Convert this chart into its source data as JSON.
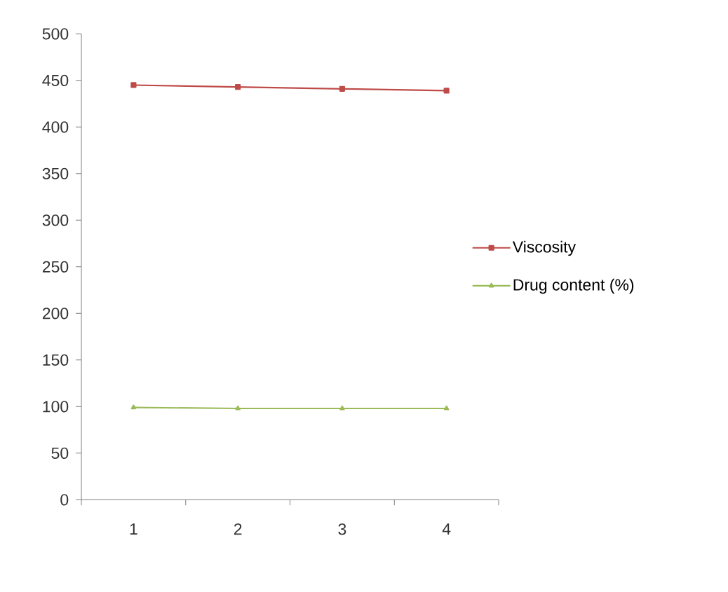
{
  "chart_data": {
    "type": "line",
    "categories": [
      "1",
      "2",
      "3",
      "4"
    ],
    "series": [
      {
        "name": "Viscosity",
        "color": "#be4b48",
        "marker": "square",
        "values": [
          445,
          443,
          441,
          439
        ]
      },
      {
        "name": "Drug content (%)",
        "color": "#9bbb59",
        "marker": "triangle",
        "values": [
          99,
          98,
          98,
          98
        ]
      }
    ],
    "ylim": [
      0,
      500
    ],
    "yticks": [
      0,
      50,
      100,
      150,
      200,
      250,
      300,
      350,
      400,
      450,
      500
    ],
    "grid": false,
    "legend": "right",
    "line_style": "solid"
  }
}
